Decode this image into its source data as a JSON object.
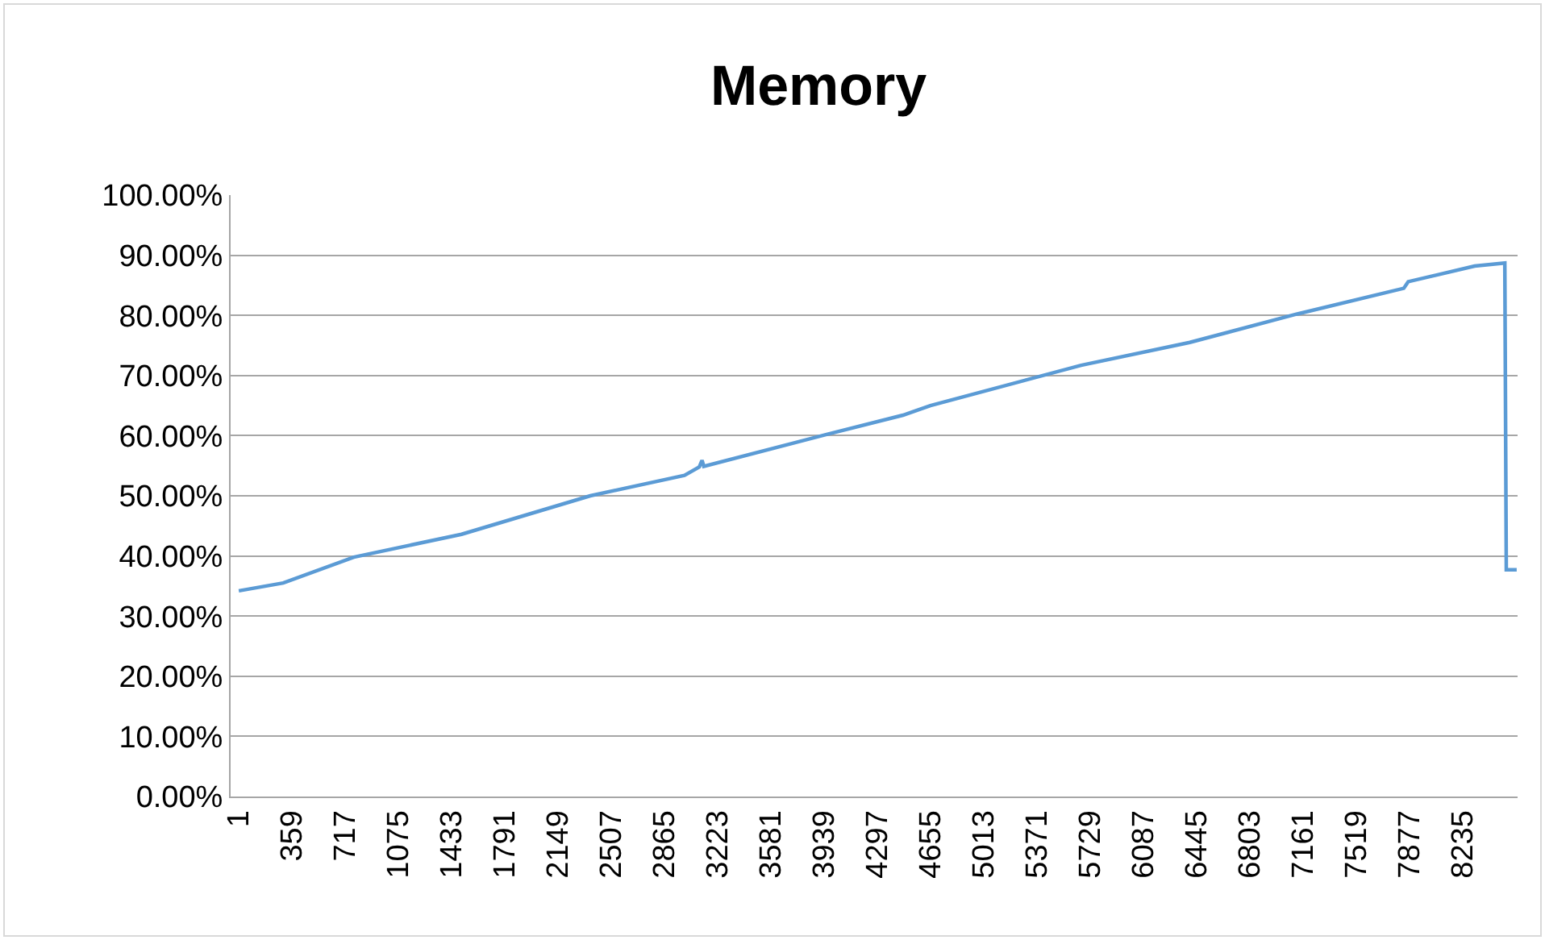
{
  "chart_data": {
    "type": "line",
    "title": "Memory",
    "x": [
      1,
      300,
      775,
      1500,
      2366,
      3000,
      3100,
      3118,
      3130,
      3957,
      4470,
      4655,
      5669,
      6400,
      7118,
      7840,
      7870,
      8317,
      8520,
      8530,
      8600
    ],
    "series": [
      {
        "color": "#5b9bd5",
        "values": [
          34.2,
          35.5,
          39.8,
          43.6,
          50.0,
          53.4,
          54.8,
          55.9,
          54.9,
          60.2,
          63.4,
          65.0,
          71.7,
          75.5,
          80.2,
          84.5,
          85.6,
          88.2,
          88.7,
          37.7,
          37.7
        ]
      }
    ],
    "xlim": [
      -54,
      8606
    ],
    "xticks": [
      1,
      359,
      717,
      1075,
      1433,
      1791,
      2149,
      2507,
      2865,
      3223,
      3581,
      3939,
      4297,
      4655,
      5013,
      5371,
      5729,
      6087,
      6445,
      6803,
      7161,
      7519,
      7877,
      8235
    ],
    "ylim": [
      0,
      100
    ],
    "yticks": [
      {
        "value": 0,
        "label": "0.00%"
      },
      {
        "value": 10,
        "label": "10.00%"
      },
      {
        "value": 20,
        "label": "20.00%"
      },
      {
        "value": 30,
        "label": "30.00%"
      },
      {
        "value": 40,
        "label": "40.00%"
      },
      {
        "value": 50,
        "label": "50.00%"
      },
      {
        "value": 60,
        "label": "60.00%"
      },
      {
        "value": 70,
        "label": "70.00%"
      },
      {
        "value": 80,
        "label": "80.00%"
      },
      {
        "value": 90,
        "label": "90.00%"
      },
      {
        "value": 100,
        "label": "100.00%"
      }
    ],
    "grid": "y",
    "marker": "none",
    "line_style": "solid"
  }
}
